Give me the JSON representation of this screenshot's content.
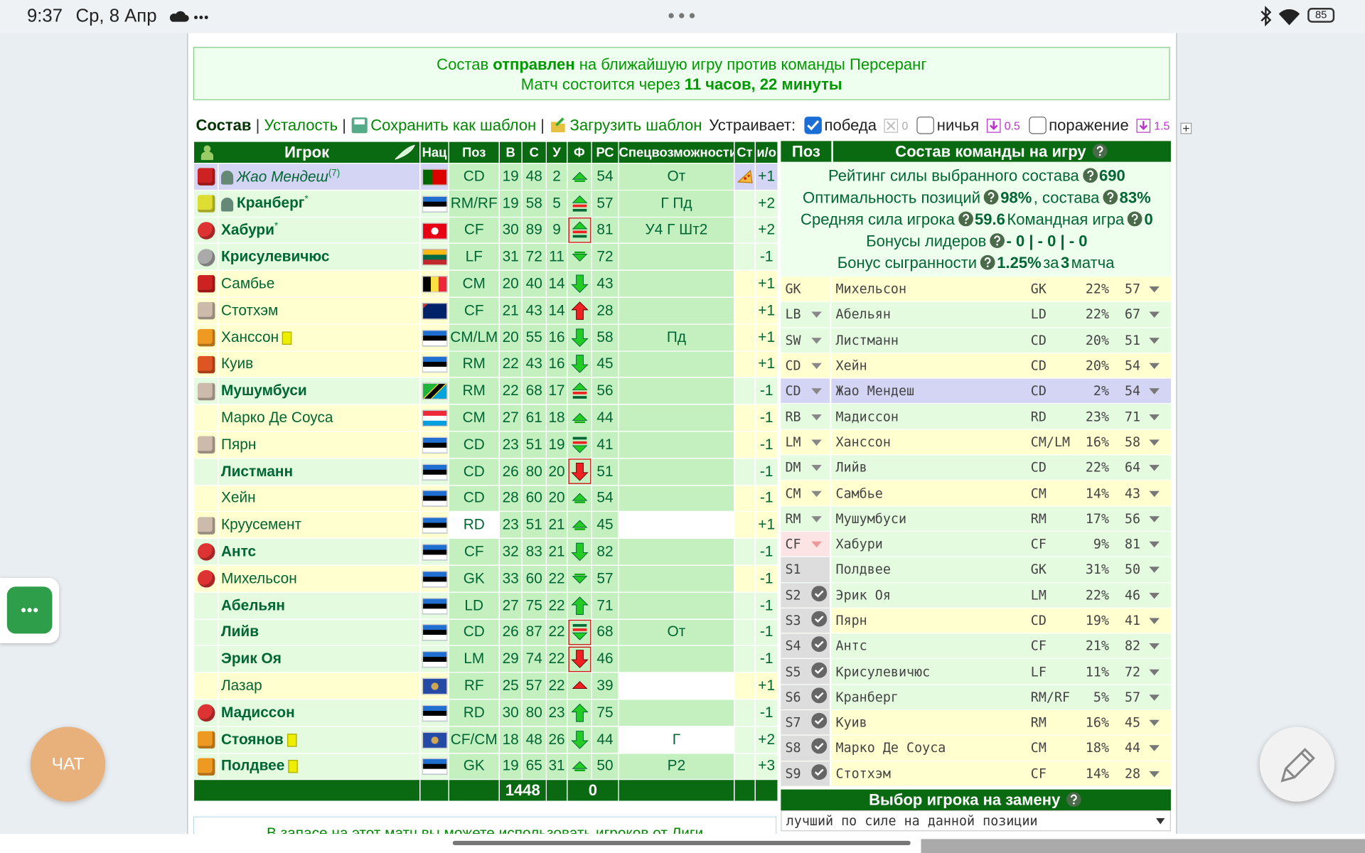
{
  "status_bar": {
    "time": "9:37",
    "date": "Ср, 8 Апр",
    "battery": 85
  },
  "notice": {
    "line1": {
      "before": "Состав ",
      "bold": "отправлен",
      "after": " на ближайшую игру против команды Персеранг"
    },
    "line2": {
      "before": "Матч состоится через ",
      "bold": "11 часов, 22 минуты"
    }
  },
  "toolbar": {
    "tabs": [
      "Состав",
      "Усталость"
    ],
    "separator": "|",
    "save_template": "Сохранить как шаблон",
    "load_template": "Загрузить шаблон",
    "accept_label": "Устраивает:",
    "options": [
      {
        "label": "победа",
        "checked": true,
        "value": 0
      },
      {
        "label": "ничья",
        "checked": false,
        "value": 0.5
      },
      {
        "label": "поражение",
        "checked": false,
        "value": 1.5
      }
    ]
  },
  "players_table": {
    "columns": [
      "Игрок",
      "Нац",
      "Поз",
      "В",
      "С",
      "У",
      "Ф",
      "РС",
      "Спецвозможности",
      "Ст",
      "и/о"
    ],
    "rows": [
      {
        "name": "Жао Мендеш",
        "sup": "(7)",
        "pos": "CD",
        "v": 19,
        "s": 48,
        "u": 2,
        "rs": 54,
        "spec": "От",
        "io": "+1"
      },
      {
        "name": "Кранберг",
        "sup": "*",
        "pos": "RM/RF",
        "v": 19,
        "s": 58,
        "u": 5,
        "rs": 57,
        "spec": "Г Пд",
        "io": "+2"
      },
      {
        "name": "Хабури",
        "sup": "*",
        "pos": "CF",
        "v": 30,
        "s": 89,
        "u": 9,
        "rs": 81,
        "spec": "У4 Г Шт2",
        "io": "+2"
      },
      {
        "name": "Крисулевичюс",
        "pos": "LF",
        "v": 31,
        "s": 72,
        "u": 11,
        "rs": 72,
        "io": "-1"
      },
      {
        "name": "Самбье",
        "pos": "CM",
        "v": 20,
        "s": 40,
        "u": 14,
        "rs": 43,
        "io": "+1"
      },
      {
        "name": "Стотхэм",
        "pos": "CF",
        "v": 21,
        "s": 43,
        "u": 14,
        "rs": 28,
        "io": "+1"
      },
      {
        "name": "Ханссон",
        "pos": "CM/LM",
        "v": 20,
        "s": 55,
        "u": 16,
        "rs": 58,
        "spec": "Пд",
        "io": "+1"
      },
      {
        "name": "Куив",
        "pos": "RM",
        "v": 22,
        "s": 43,
        "u": 16,
        "rs": 45,
        "io": "+1"
      },
      {
        "name": "Мушумбуси",
        "pos": "RM",
        "v": 22,
        "s": 68,
        "u": 17,
        "rs": 56,
        "io": "-1"
      },
      {
        "name": "Марко Де Соуса",
        "pos": "CM",
        "v": 27,
        "s": 61,
        "u": 18,
        "rs": 44,
        "io": "-1"
      },
      {
        "name": "Пярн",
        "pos": "CD",
        "v": 23,
        "s": 51,
        "u": 19,
        "rs": 41,
        "io": "-1"
      },
      {
        "name": "Листманн",
        "pos": "CD",
        "v": 26,
        "s": 80,
        "u": 20,
        "rs": 51,
        "io": "-1"
      },
      {
        "name": "Хейн",
        "pos": "CD",
        "v": 28,
        "s": 60,
        "u": 20,
        "rs": 54,
        "io": "-1"
      },
      {
        "name": "Круусемент",
        "pos": "RD",
        "v": 23,
        "s": 51,
        "u": 21,
        "rs": 45,
        "io": "+1"
      },
      {
        "name": "Антс",
        "pos": "CF",
        "v": 32,
        "s": 83,
        "u": 21,
        "rs": 82,
        "io": "-1"
      },
      {
        "name": "Михельсон",
        "pos": "GK",
        "v": 33,
        "s": 60,
        "u": 22,
        "rs": 57,
        "io": "-1"
      },
      {
        "name": "Абельян",
        "pos": "LD",
        "v": 27,
        "s": 75,
        "u": 22,
        "rs": 71,
        "io": "-1"
      },
      {
        "name": "Лийв",
        "pos": "CD",
        "v": 26,
        "s": 87,
        "u": 22,
        "rs": 68,
        "spec": "От",
        "io": "-1"
      },
      {
        "name": "Эрик Оя",
        "pos": "LM",
        "v": 29,
        "s": 74,
        "u": 22,
        "rs": 46,
        "io": "-1"
      },
      {
        "name": "Лазар",
        "pos": "RF",
        "v": 25,
        "s": 57,
        "u": 22,
        "rs": 39,
        "io": "+1"
      },
      {
        "name": "Мадиссон",
        "pos": "RD",
        "v": 30,
        "s": 80,
        "u": 23,
        "rs": 75,
        "io": "-1"
      },
      {
        "name": "Стоянов",
        "pos": "CF/CM",
        "v": 18,
        "s": 48,
        "u": 26,
        "rs": 44,
        "spec": "Г",
        "io": "+2"
      },
      {
        "name": "Полдвее",
        "pos": "GK",
        "v": 19,
        "s": 65,
        "u": 31,
        "rs": 50,
        "spec": "Р2",
        "io": "+3"
      }
    ],
    "totals": {
      "s": 1448,
      "f": 0
    }
  },
  "lineup": {
    "header": {
      "pos": "Поз",
      "title": "Состав команды на игру"
    },
    "stats": [
      [
        {
          "t": "Рейтинг силы выбранного состава",
          "help": true
        },
        {
          "t": "690",
          "b": true
        }
      ],
      [
        {
          "t": "Оптимальность позиций",
          "help": true
        },
        {
          "t": "98%",
          "b": true
        },
        {
          "t": ", состава",
          "help": true
        },
        {
          "t": "83%",
          "b": true
        }
      ],
      [
        {
          "t": "Средняя сила игрока",
          "help": true
        },
        {
          "t": "59.6",
          "b": true
        },
        {
          "t": "Командная игра",
          "help": true
        },
        {
          "t": "0",
          "b": true
        }
      ],
      [
        {
          "t": "Бонусы лидеров",
          "help": true
        },
        {
          "t": "- 0 | - 0 | - 0",
          "b": true
        }
      ],
      [
        {
          "t": "Бонус сыгранности",
          "help": true
        },
        {
          "t": "1.25%",
          "b": true
        },
        {
          "t": "за"
        },
        {
          "t": "3",
          "b": true
        },
        {
          "t": "матча"
        }
      ]
    ],
    "rows": [
      [
        "GK",
        "Михельсон",
        "GK",
        "22%",
        "57"
      ],
      [
        "LB",
        "Абельян",
        "LD",
        "22%",
        "67"
      ],
      [
        "SW",
        "Листманн",
        "CD",
        "20%",
        "51"
      ],
      [
        "CD",
        "Хейн",
        "CD",
        "20%",
        "54"
      ],
      [
        "CD",
        "Жао Мендеш",
        "CD",
        "2%",
        "54"
      ],
      [
        "RB",
        "Мадиссон",
        "RD",
        "23%",
        "71"
      ],
      [
        "LM",
        "Ханссон",
        "CM/LM",
        "16%",
        "58"
      ],
      [
        "DM",
        "Лийв",
        "CD",
        "22%",
        "64"
      ],
      [
        "CM",
        "Самбье",
        "CM",
        "14%",
        "43"
      ],
      [
        "RM",
        "Мушумбуси",
        "RM",
        "17%",
        "56"
      ],
      [
        "CF",
        "Хабури",
        "CF",
        "9%",
        "81"
      ],
      [
        "S1",
        "Полдвее",
        "GK",
        "31%",
        "50"
      ],
      [
        "S2",
        "Эрик Оя",
        "LM",
        "22%",
        "46"
      ],
      [
        "S3",
        "Пярн",
        "CD",
        "19%",
        "41"
      ],
      [
        "S4",
        "Антс",
        "CF",
        "21%",
        "82"
      ],
      [
        "S5",
        "Крисулевичюс",
        "LF",
        "11%",
        "72"
      ],
      [
        "S6",
        "Кранберг",
        "RM/RF",
        "5%",
        "57"
      ],
      [
        "S7",
        "Куив",
        "RM",
        "16%",
        "45"
      ],
      [
        "S8",
        "Марко Де Соуса",
        "CM",
        "18%",
        "44"
      ],
      [
        "S9",
        "Стотхэм",
        "CF",
        "14%",
        "28"
      ]
    ],
    "substitute": {
      "title": "Выбор игрока на замену",
      "select": "лучший по силе на данной позиции"
    }
  },
  "footer_note": "В запасе на этот матч вы можете использовать игроков от Лиги",
  "chat_button": "ЧАТ"
}
